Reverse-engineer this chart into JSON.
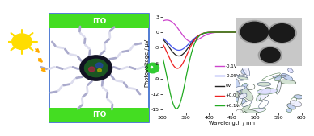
{
  "wavelength_start": 300,
  "wavelength_end": 600,
  "ylabel": "Photovoltage / μV",
  "xlabel": "Wavelength / nm",
  "ylim": [
    -15.5,
    3.5
  ],
  "yticks": [
    3,
    0,
    -3,
    -6,
    -9,
    -12,
    -15
  ],
  "xticks": [
    300,
    350,
    400,
    450,
    500,
    550,
    600
  ],
  "curves_params": [
    [
      "-0.1V",
      "#cc44cc",
      318,
      2.8,
      355,
      -2.8,
      455,
      28,
      22
    ],
    [
      "-0.05V",
      "#4455ee",
      395,
      0.55,
      335,
      -3.5,
      448,
      0,
      23
    ],
    [
      "0V",
      "#222222",
      0,
      0,
      335,
      -4.6,
      442,
      0,
      22
    ],
    [
      "+0.05V",
      "#ee2222",
      0,
      0,
      332,
      -7.0,
      442,
      0,
      21
    ],
    [
      "+0.1V",
      "#22aa22",
      0,
      0,
      330,
      -14.8,
      477,
      0,
      20
    ]
  ],
  "ito_color": "#44dd22",
  "ito_text_color": "white",
  "border_color": "#3366cc",
  "sun_color": "#ffdd00",
  "sun_ray_color": "#ffaa00",
  "arm_color1": "#aaaacc",
  "arm_color2": "#ddddee",
  "green_dot_color": "#33cc33",
  "inset1_bg": "#cccccc",
  "inset2_bg": "#bbbbbb"
}
